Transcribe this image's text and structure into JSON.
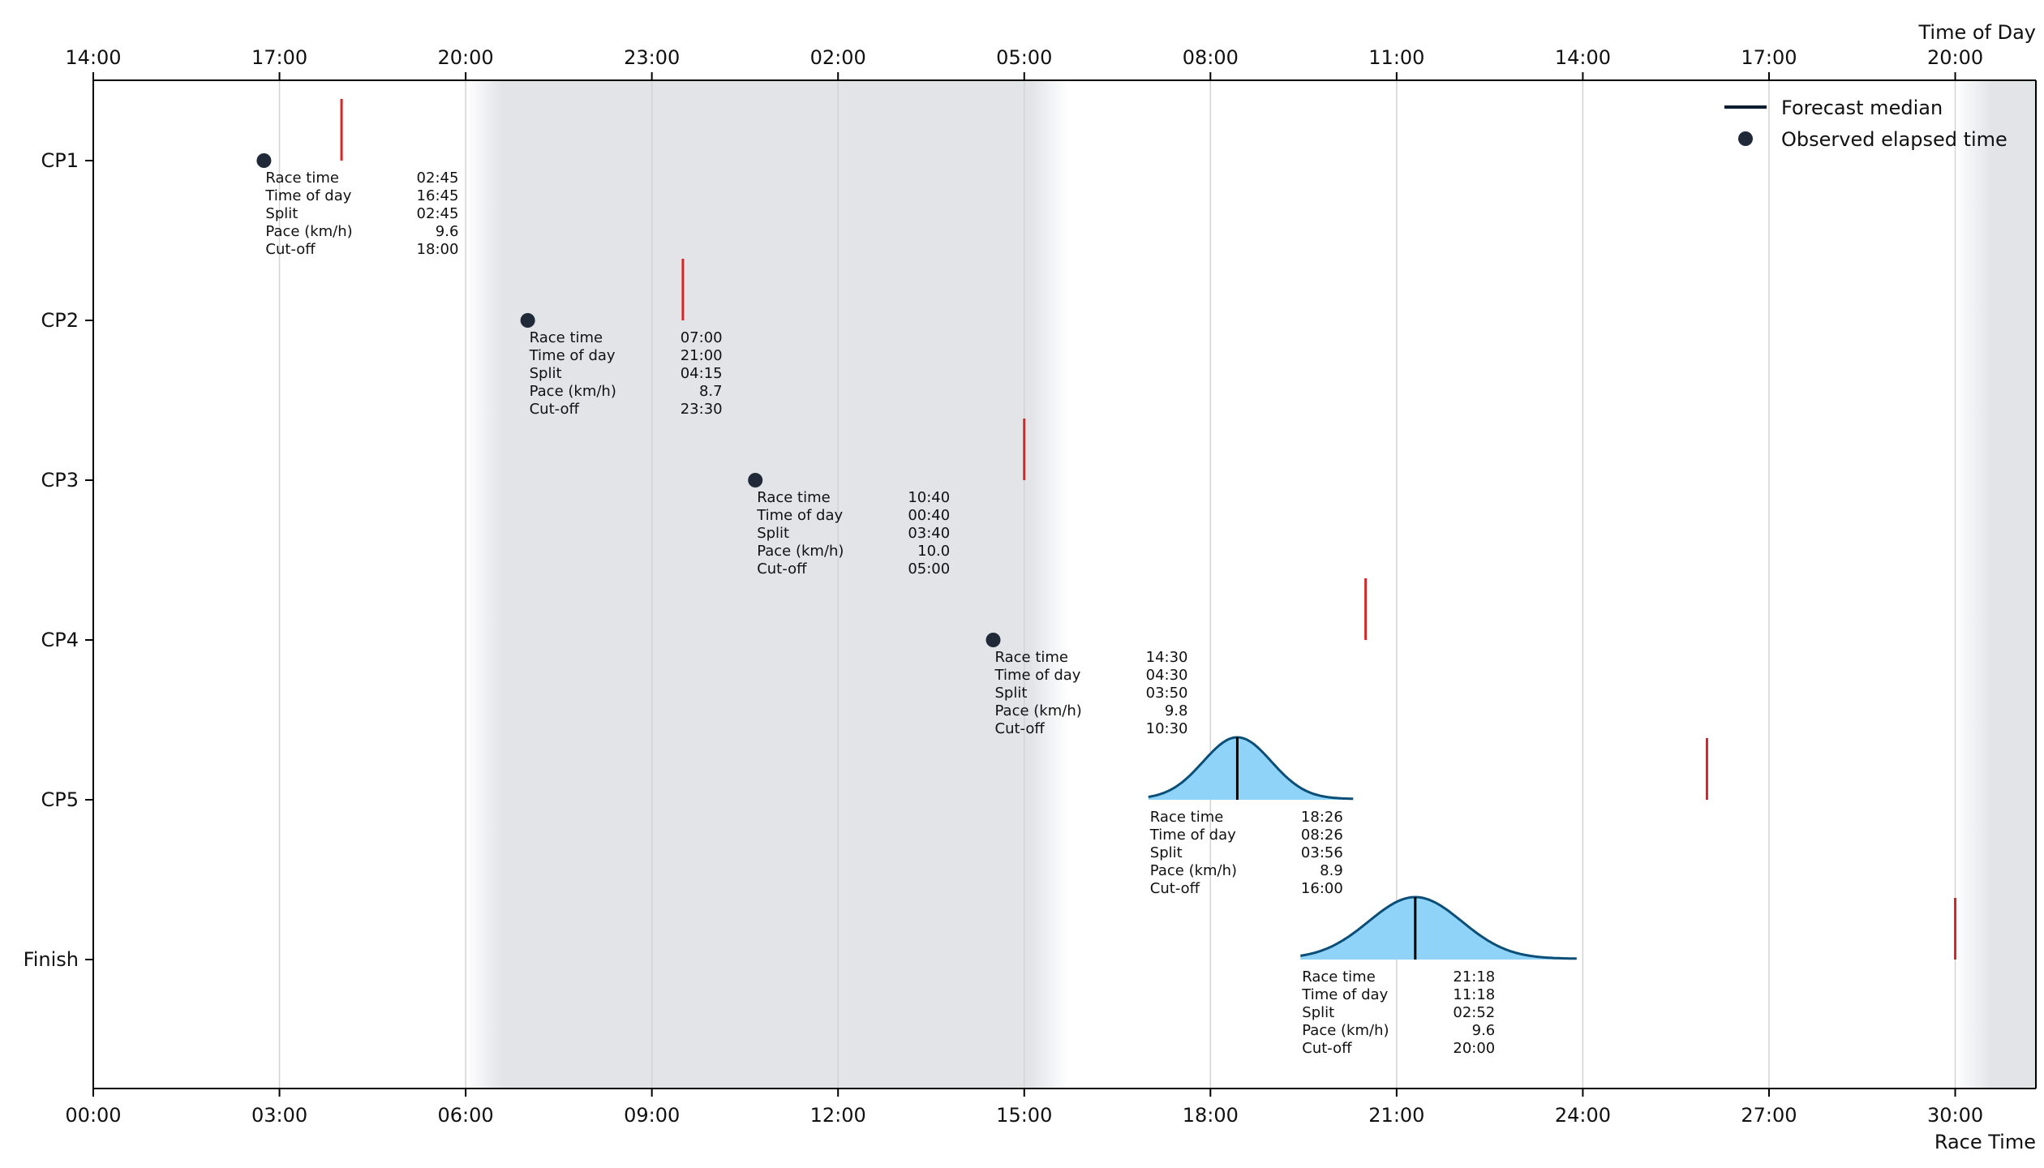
{
  "chart_data": {
    "type": "scatter",
    "x_axis_bottom": {
      "title": "Race Time",
      "range_hours": [
        0,
        31.3
      ],
      "ticks": [
        0,
        3,
        6,
        9,
        12,
        15,
        18,
        21,
        24,
        27,
        30
      ],
      "tick_labels": [
        "00:00",
        "03:00",
        "06:00",
        "09:00",
        "12:00",
        "15:00",
        "18:00",
        "21:00",
        "24:00",
        "27:00",
        "30:00"
      ]
    },
    "x_axis_top": {
      "title": "Time of Day",
      "tick_labels": [
        "14:00",
        "17:00",
        "20:00",
        "23:00",
        "02:00",
        "05:00",
        "08:00",
        "11:00",
        "14:00",
        "17:00",
        "20:00"
      ]
    },
    "y_axis": {
      "categories": [
        "CP1",
        "CP2",
        "CP3",
        "CP4",
        "CP5",
        "Finish"
      ]
    },
    "grid": "vertical",
    "legend": {
      "placement": "top-right",
      "entries": [
        {
          "label": "Forecast median",
          "marker": "line"
        },
        {
          "label": "Observed elapsed time",
          "marker": "dot"
        }
      ]
    },
    "night_shading_hours": [
      [
        6.0,
        15.7
      ],
      [
        30.0,
        31.3
      ]
    ],
    "info_labels": [
      "Race time",
      "Time of day",
      "Split",
      "Pace (km/h)",
      "Cut-off"
    ],
    "checkpoints": [
      {
        "name": "CP1",
        "kind": "observed",
        "race_time_h": 2.75,
        "cutoff_h": 4.0,
        "info": {
          "race_time": "02:45",
          "time_of_day": "16:45",
          "split": "02:45",
          "pace": "9.6",
          "cutoff": "18:00"
        }
      },
      {
        "name": "CP2",
        "kind": "observed",
        "race_time_h": 7.0,
        "cutoff_h": 9.5,
        "info": {
          "race_time": "07:00",
          "time_of_day": "21:00",
          "split": "04:15",
          "pace": "8.7",
          "cutoff": "23:30"
        }
      },
      {
        "name": "CP3",
        "kind": "observed",
        "race_time_h": 10.667,
        "cutoff_h": 15.0,
        "info": {
          "race_time": "10:40",
          "time_of_day": "00:40",
          "split": "03:40",
          "pace": "10.0",
          "cutoff": "05:00"
        }
      },
      {
        "name": "CP4",
        "kind": "observed",
        "race_time_h": 14.5,
        "cutoff_h": 20.5,
        "info": {
          "race_time": "14:30",
          "time_of_day": "04:30",
          "split": "03:50",
          "pace": "9.8",
          "cutoff": "10:30"
        }
      },
      {
        "name": "CP5",
        "kind": "forecast",
        "race_time_h": 18.433,
        "cutoff_h": 26.0,
        "dist_range_h": [
          17.0,
          20.3
        ],
        "dist_sigma_h": 0.55,
        "info": {
          "race_time": "18:26",
          "time_of_day": "08:26",
          "split": "03:56",
          "pace": "8.9",
          "cutoff": "16:00"
        }
      },
      {
        "name": "Finish",
        "kind": "forecast",
        "race_time_h": 21.3,
        "cutoff_h": 30.0,
        "dist_range_h": [
          19.45,
          23.9
        ],
        "dist_sigma_h": 0.75,
        "info": {
          "race_time": "21:18",
          "time_of_day": "11:18",
          "split": "02:52",
          "pace": "9.6",
          "cutoff": "20:00"
        }
      }
    ],
    "colors": {
      "observed_dot": "#1f2937",
      "cutoff_line": "#d62728",
      "forecast_fill": "#8fd3f9",
      "forecast_outline": "#0b4f79",
      "forecast_median": "#000000",
      "night_shade": "#e2e4e8",
      "grid": "#d3d3d3"
    }
  }
}
